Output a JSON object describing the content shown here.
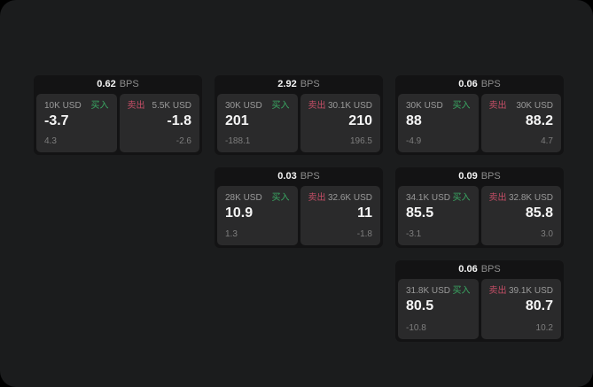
{
  "labels": {
    "bps_unit": "BPS",
    "buy": "买入",
    "sell": "卖出"
  },
  "colors": {
    "outer_bg": "#000000",
    "page_bg": "#1b1c1d",
    "card_bg": "#131314",
    "panel_bg": "#2a2a2b",
    "text_primary": "#f5f5f5",
    "text_secondary": "#9a9a9a",
    "text_muted": "#7e7e7e",
    "buy_green": "#3aa863",
    "sell_red": "#c44e66"
  },
  "cards": [
    {
      "bps": "0.62",
      "buy": {
        "size": "10K USD",
        "price": "-3.7",
        "delta": "4.3"
      },
      "sell": {
        "size": "5.5K USD",
        "price": "-1.8",
        "delta": "-2.6"
      }
    },
    {
      "bps": "2.92",
      "buy": {
        "size": "30K USD",
        "price": "201",
        "delta": "-188.1"
      },
      "sell": {
        "size": "30.1K USD",
        "price": "210",
        "delta": "196.5"
      }
    },
    {
      "bps": "0.06",
      "buy": {
        "size": "30K USD",
        "price": "88",
        "delta": "-4.9"
      },
      "sell": {
        "size": "30K USD",
        "price": "88.2",
        "delta": "4.7"
      }
    },
    {
      "bps": "0.03",
      "buy": {
        "size": "28K USD",
        "price": "10.9",
        "delta": "1.3"
      },
      "sell": {
        "size": "32.6K USD",
        "price": "11",
        "delta": "-1.8"
      }
    },
    {
      "bps": "0.09",
      "buy": {
        "size": "34.1K USD",
        "price": "85.5",
        "delta": "-3.1"
      },
      "sell": {
        "size": "32.8K USD",
        "price": "85.8",
        "delta": "3.0"
      }
    },
    {
      "bps": "0.06",
      "buy": {
        "size": "31.8K USD",
        "price": "80.5",
        "delta": "-10.8"
      },
      "sell": {
        "size": "39.1K USD",
        "price": "80.7",
        "delta": "10.2"
      }
    }
  ]
}
